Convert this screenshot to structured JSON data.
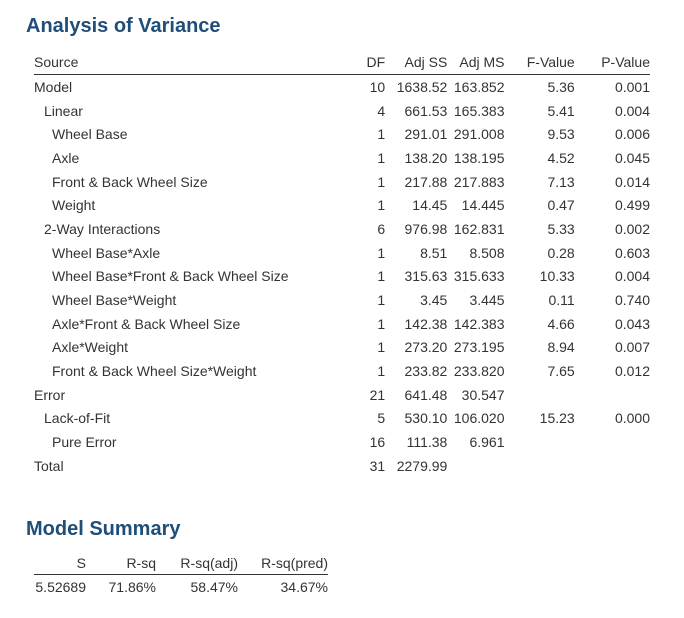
{
  "anova": {
    "title": "Analysis of Variance",
    "headers": {
      "source": "Source",
      "df": "DF",
      "adj_ss": "Adj SS",
      "adj_ms": "Adj MS",
      "f_value": "F-Value",
      "p_value": "P-Value"
    },
    "rows": [
      {
        "source": "Model",
        "level": 0,
        "df": "10",
        "adj_ss": "1638.52",
        "adj_ms": "163.852",
        "f_value": "5.36",
        "p_value": "0.001"
      },
      {
        "source": "Linear",
        "level": 1,
        "df": "4",
        "adj_ss": "661.53",
        "adj_ms": "165.383",
        "f_value": "5.41",
        "p_value": "0.004"
      },
      {
        "source": "Wheel Base",
        "level": 2,
        "df": "1",
        "adj_ss": "291.01",
        "adj_ms": "291.008",
        "f_value": "9.53",
        "p_value": "0.006"
      },
      {
        "source": "Axle",
        "level": 2,
        "df": "1",
        "adj_ss": "138.20",
        "adj_ms": "138.195",
        "f_value": "4.52",
        "p_value": "0.045"
      },
      {
        "source": "Front & Back Wheel Size",
        "level": 2,
        "df": "1",
        "adj_ss": "217.88",
        "adj_ms": "217.883",
        "f_value": "7.13",
        "p_value": "0.014"
      },
      {
        "source": "Weight",
        "level": 2,
        "df": "1",
        "adj_ss": "14.45",
        "adj_ms": "14.445",
        "f_value": "0.47",
        "p_value": "0.499"
      },
      {
        "source": "2-Way Interactions",
        "level": 1,
        "df": "6",
        "adj_ss": "976.98",
        "adj_ms": "162.831",
        "f_value": "5.33",
        "p_value": "0.002"
      },
      {
        "source": "Wheel Base*Axle",
        "level": 2,
        "df": "1",
        "adj_ss": "8.51",
        "adj_ms": "8.508",
        "f_value": "0.28",
        "p_value": "0.603"
      },
      {
        "source": "Wheel Base*Front & Back Wheel Size",
        "level": 2,
        "df": "1",
        "adj_ss": "315.63",
        "adj_ms": "315.633",
        "f_value": "10.33",
        "p_value": "0.004"
      },
      {
        "source": "Wheel Base*Weight",
        "level": 2,
        "df": "1",
        "adj_ss": "3.45",
        "adj_ms": "3.445",
        "f_value": "0.11",
        "p_value": "0.740"
      },
      {
        "source": "Axle*Front & Back Wheel Size",
        "level": 2,
        "df": "1",
        "adj_ss": "142.38",
        "adj_ms": "142.383",
        "f_value": "4.66",
        "p_value": "0.043"
      },
      {
        "source": "Axle*Weight",
        "level": 2,
        "df": "1",
        "adj_ss": "273.20",
        "adj_ms": "273.195",
        "f_value": "8.94",
        "p_value": "0.007"
      },
      {
        "source": "Front & Back Wheel Size*Weight",
        "level": 2,
        "df": "1",
        "adj_ss": "233.82",
        "adj_ms": "233.820",
        "f_value": "7.65",
        "p_value": "0.012"
      },
      {
        "source": "Error",
        "level": 0,
        "df": "21",
        "adj_ss": "641.48",
        "adj_ms": "30.547",
        "f_value": "",
        "p_value": ""
      },
      {
        "source": "Lack-of-Fit",
        "level": 1,
        "df": "5",
        "adj_ss": "530.10",
        "adj_ms": "106.020",
        "f_value": "15.23",
        "p_value": "0.000"
      },
      {
        "source": "Pure Error",
        "level": 2,
        "df": "16",
        "adj_ss": "111.38",
        "adj_ms": "6.961",
        "f_value": "",
        "p_value": ""
      },
      {
        "source": "Total",
        "level": 0,
        "df": "31",
        "adj_ss": "2279.99",
        "adj_ms": "",
        "f_value": "",
        "p_value": ""
      }
    ]
  },
  "model_summary": {
    "title": "Model Summary",
    "headers": {
      "s": "S",
      "r_sq": "R-sq",
      "r_sq_adj": "R-sq(adj)",
      "r_sq_pred": "R-sq(pred)"
    },
    "values": {
      "s": "5.52689",
      "r_sq": "71.86%",
      "r_sq_adj": "58.47%",
      "r_sq_pred": "34.67%"
    }
  }
}
